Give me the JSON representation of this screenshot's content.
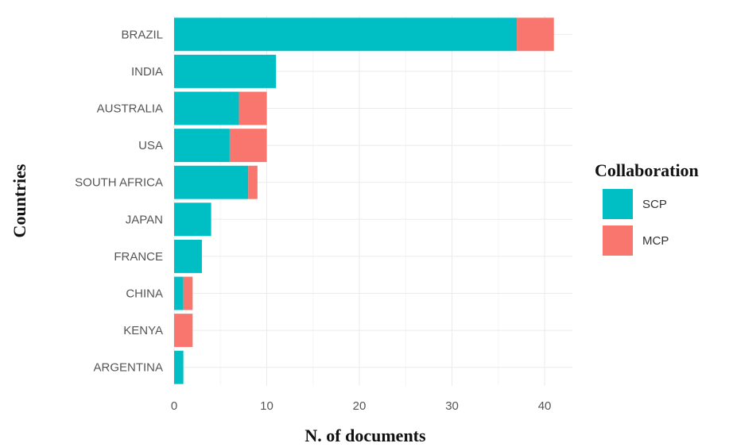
{
  "chart_data": {
    "type": "bar",
    "orientation": "horizontal",
    "stacked": true,
    "title": "",
    "xlabel": "N. of documents",
    "ylabel": "Countries",
    "xlim": [
      0,
      43
    ],
    "xticks": [
      0,
      10,
      20,
      30,
      40
    ],
    "categories": [
      "BRAZIL",
      "INDIA",
      "AUSTRALIA",
      "USA",
      "SOUTH AFRICA",
      "JAPAN",
      "FRANCE",
      "CHINA",
      "KENYA",
      "ARGENTINA"
    ],
    "series": [
      {
        "name": "SCP",
        "color": "#00BFC4",
        "values": [
          37,
          11,
          7,
          6,
          8,
          4,
          3,
          1,
          0,
          1
        ]
      },
      {
        "name": "MCP",
        "color": "#F8766D",
        "values": [
          4,
          0,
          3,
          4,
          1,
          0,
          0,
          1,
          2,
          0
        ]
      }
    ],
    "legend": {
      "title": "Collaboration",
      "position": "right"
    },
    "grid": true
  }
}
